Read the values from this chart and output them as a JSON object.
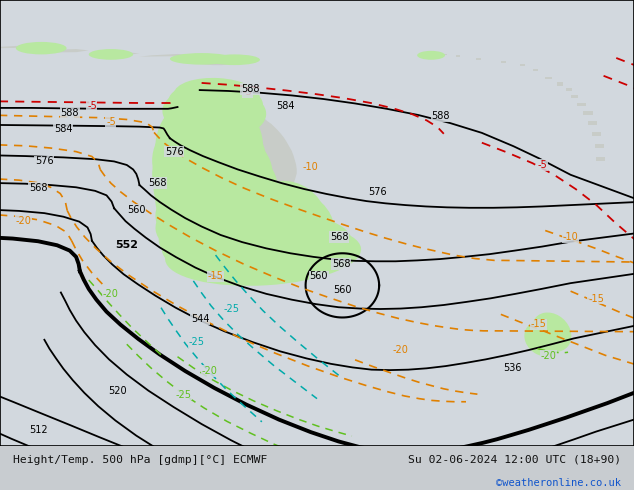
{
  "title_left": "Height/Temp. 500 hPa [gdmp][°C] ECMWF",
  "title_right": "Su 02-06-2024 12:00 UTC (18+90)",
  "watermark": "©weatheronline.co.uk",
  "bg_ocean": "#d8dde2",
  "bg_land": "#c8ccd0",
  "green_fill": "#b8e8a0",
  "green_edge": "#70b860"
}
